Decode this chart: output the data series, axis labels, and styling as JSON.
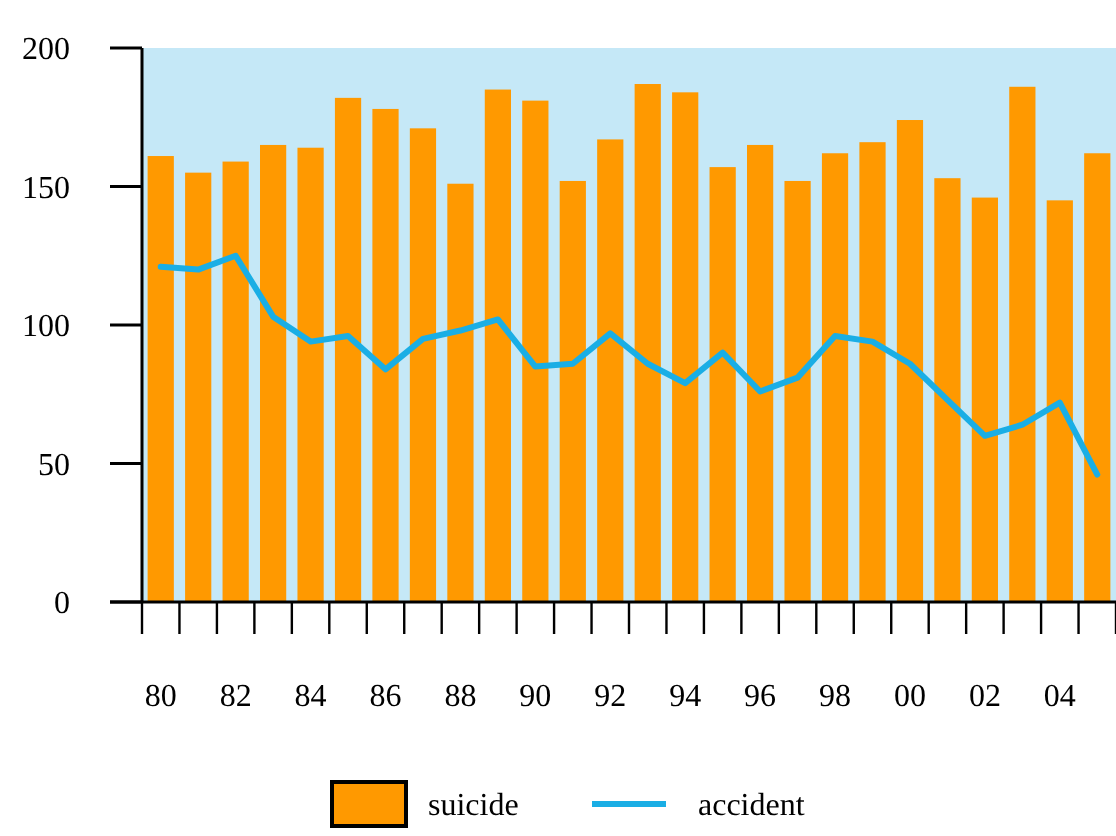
{
  "chart_data": {
    "type": "bar",
    "categories": [
      "80",
      null,
      "82",
      null,
      "84",
      null,
      "86",
      null,
      "88",
      null,
      "90",
      null,
      "92",
      null,
      "94",
      null,
      "96",
      null,
      "98",
      null,
      "00",
      null,
      "02",
      null,
      "04",
      null
    ],
    "series": [
      {
        "name": "suicide",
        "color": "#ff9900",
        "values": [
          161,
          155,
          159,
          165,
          164,
          182,
          178,
          171,
          151,
          185,
          181,
          152,
          167,
          187,
          184,
          157,
          165,
          152,
          162,
          166,
          174,
          153,
          146,
          186,
          145,
          162
        ]
      },
      {
        "name": "accident",
        "type": "line",
        "color": "#1aaee5",
        "values": [
          121,
          120,
          125,
          103,
          94,
          96,
          84,
          95,
          98,
          102,
          85,
          86,
          97,
          86,
          79,
          90,
          76,
          81,
          96,
          94,
          86,
          73,
          60,
          64,
          72,
          46
        ]
      }
    ],
    "ylim": [
      0,
      200
    ],
    "yticks": [
      0,
      50,
      100,
      150,
      200
    ],
    "legend": "bottom",
    "grid": false
  }
}
